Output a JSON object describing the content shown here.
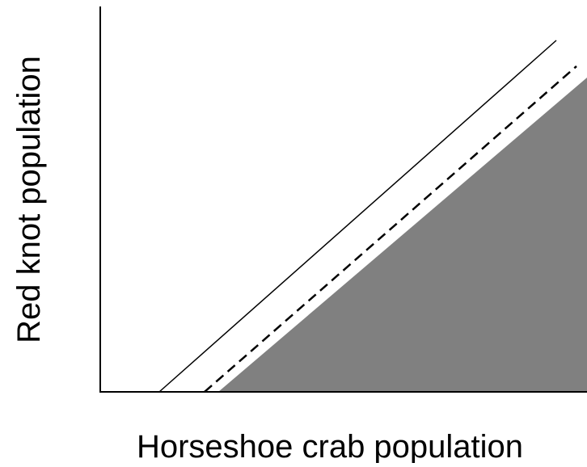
{
  "x_label": "Horseshoe crab population",
  "y_label": "Red knot population"
}
